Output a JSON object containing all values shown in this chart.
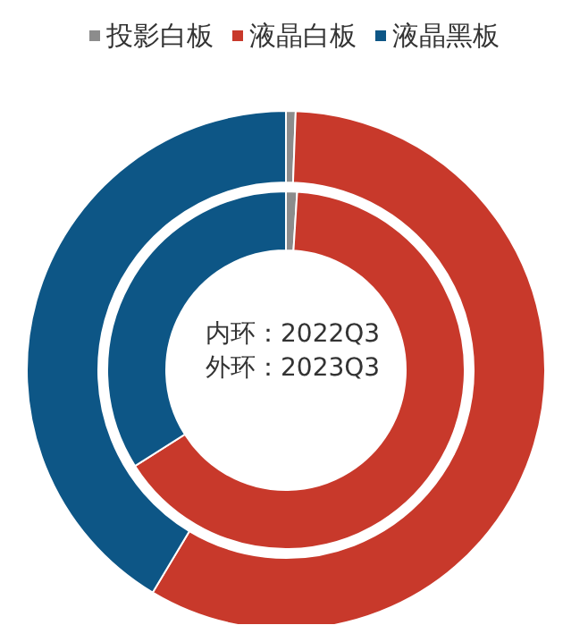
{
  "chart_data": {
    "type": "donut",
    "categories": [
      "投影白板",
      "液晶白板",
      "液晶黑板"
    ],
    "colors": [
      "#8c8c8c",
      "#c8392b",
      "#0d5686"
    ],
    "series": [
      {
        "values": [
          1,
          65,
          34
        ]
      },
      {
        "values": [
          0.6,
          58,
          41.4
        ]
      }
    ],
    "annotations": [
      "内环：2022Q3",
      "外环：2023Q3"
    ],
    "legend": "top"
  }
}
